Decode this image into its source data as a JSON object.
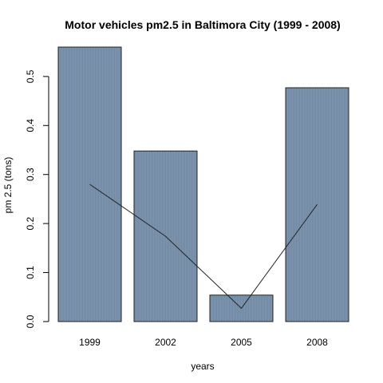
{
  "chart_data": {
    "type": "bar",
    "title": "Motor vehicles pm2.5 in Baltimora City (1999 - 2008)",
    "xlabel": "years",
    "ylabel": "pm 2.5 (tons)",
    "categories": [
      "1999",
      "2002",
      "2005",
      "2008"
    ],
    "values": [
      0.56,
      0.348,
      0.054,
      0.477
    ],
    "line_values": [
      0.28,
      0.174,
      0.027,
      0.239
    ],
    "ylim": [
      0,
      0.56
    ],
    "yticks": [
      0.0,
      0.1,
      0.2,
      0.3,
      0.4,
      0.5
    ],
    "ytick_labels": [
      "0.0",
      "0.1",
      "0.2",
      "0.3",
      "0.4",
      "0.5"
    ],
    "grid": false,
    "colors": {
      "bar_fill": "#6f88a3",
      "bar_stroke": "#222222",
      "line": "#222222"
    }
  }
}
